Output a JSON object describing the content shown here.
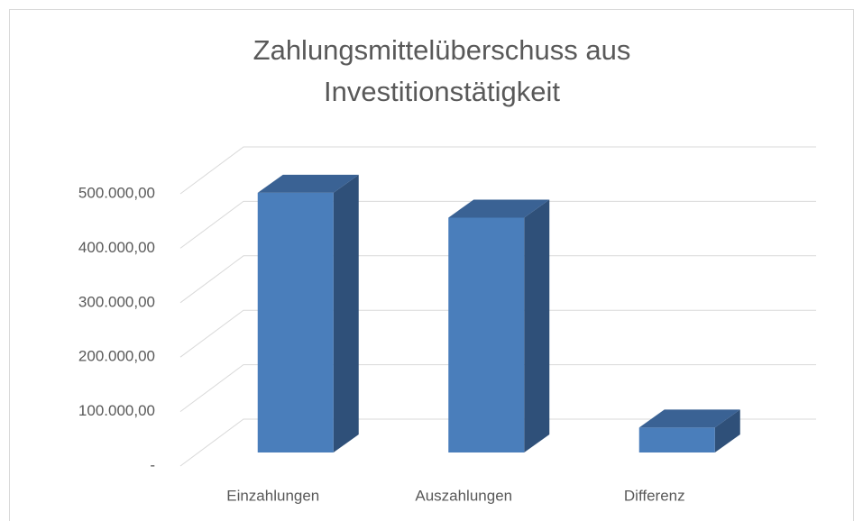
{
  "chart_data": {
    "type": "bar3d",
    "title": "Zahlungsmittelüberschuss aus Investitionstätigkeit",
    "categories": [
      "Einzahlungen",
      "Auszahlungen",
      "Differenz"
    ],
    "values": [
      470000,
      425000,
      45000
    ],
    "color": "#4a7ebb",
    "ylim": [
      0,
      500000
    ],
    "yticks": [
      {
        "value": 0,
        "label": "-"
      },
      {
        "value": 100000,
        "label": "100.000,00"
      },
      {
        "value": 200000,
        "label": "200.000,00"
      },
      {
        "value": 300000,
        "label": "300.000,00"
      },
      {
        "value": 400000,
        "label": "400.000,00"
      },
      {
        "value": 500000,
        "label": "500.000,00"
      }
    ],
    "grid": true
  }
}
